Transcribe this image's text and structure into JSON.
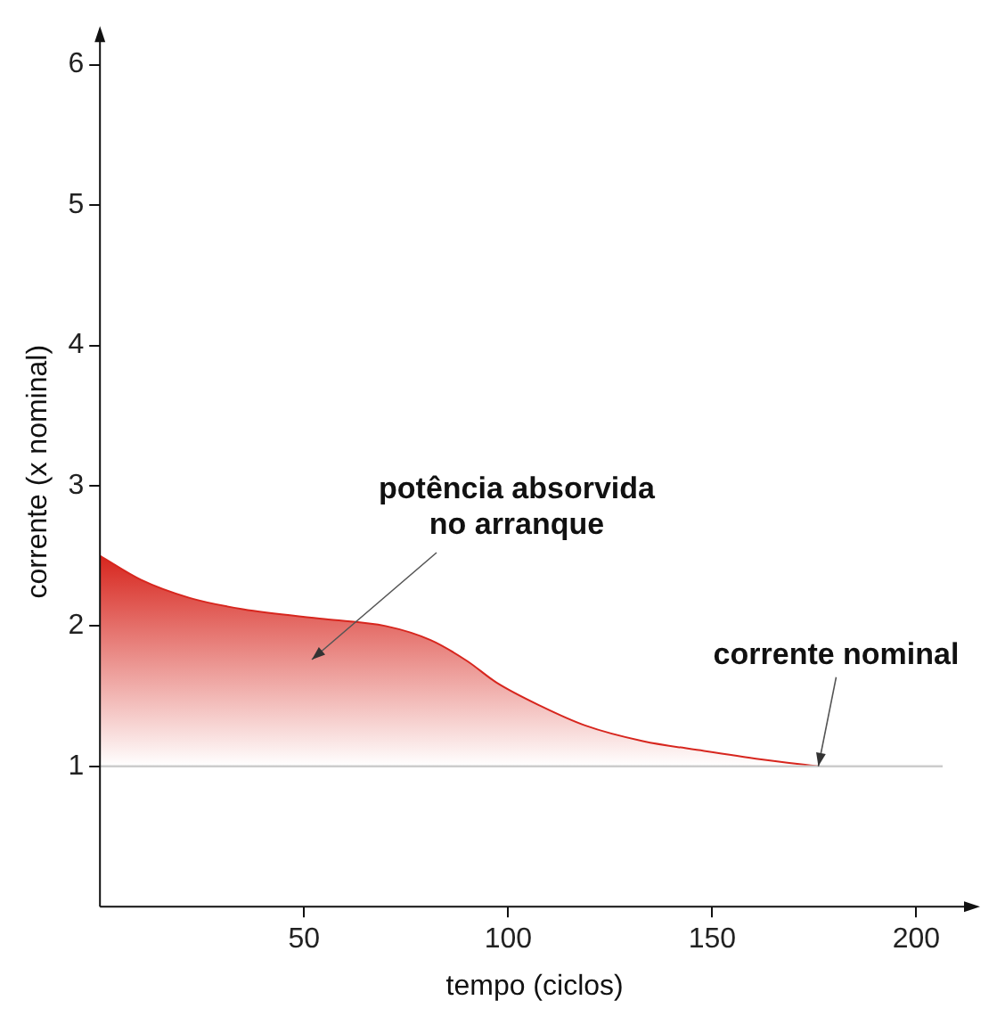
{
  "chart_data": {
    "type": "area",
    "xlabel": "tempo (ciclos)",
    "ylabel": "corrente (x nominal)",
    "xlim": [
      0,
      213
    ],
    "ylim": [
      0,
      6.2
    ],
    "xticks": [
      50,
      100,
      150,
      200
    ],
    "yticks": [
      1,
      2,
      3,
      4,
      5,
      6
    ],
    "grid": false,
    "legend": false,
    "marker": "none",
    "series": [
      {
        "color": "#d7261e",
        "x": [
          0,
          10,
          22,
          35,
          55,
          70,
          81,
          90,
          97,
          108,
          119,
          133,
          148,
          162,
          176
        ],
        "values": [
          2.5,
          2.33,
          2.2,
          2.12,
          2.05,
          2.0,
          1.9,
          1.75,
          1.6,
          1.43,
          1.29,
          1.18,
          1.11,
          1.05,
          1.0
        ]
      }
    ],
    "ref_lines": [
      {
        "axis": "y",
        "value": 1,
        "color": "#cccccc"
      }
    ],
    "annotations": [
      "potência absorvida\nno arranque",
      {
        "text": "corrente nominal",
        "x": 176,
        "y": 1
      }
    ]
  }
}
